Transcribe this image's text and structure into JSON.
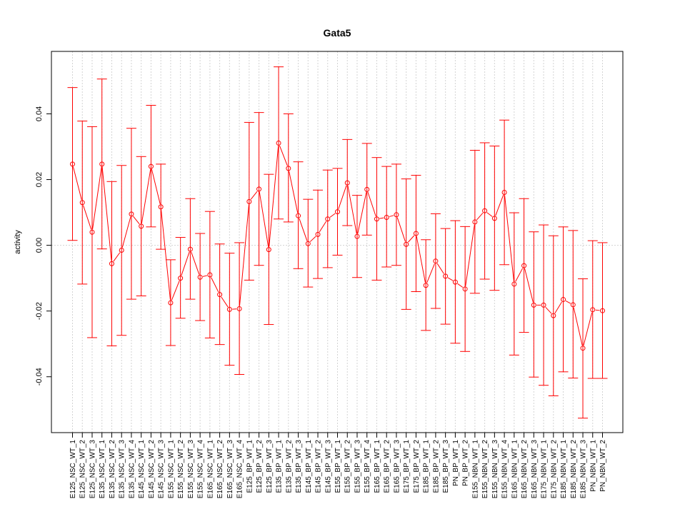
{
  "chart_data": {
    "type": "line",
    "title": "Gata5",
    "xlabel": "",
    "ylabel": "activity",
    "ylim": [
      -0.057,
      0.059
    ],
    "yticks": [
      -0.04,
      -0.02,
      0.0,
      0.02,
      0.04
    ],
    "ytick_labels": [
      "-0.04",
      "-0.02",
      "0.00",
      "0.02",
      "0.04"
    ],
    "grid": true,
    "series_color": "#ff0000",
    "grid_color": "#d3d3d3",
    "categories": [
      "E125_NSC_WT_1",
      "E125_NSC_WT_2",
      "E125_NSC_WT_3",
      "E135_NSC_WT_1",
      "E135_NSC_WT_2",
      "E135_NSC_WT_3",
      "E135_NSC_WT_4",
      "E145_NSC_WT_1",
      "E145_NSC_WT_2",
      "E145_NSC_WT_3",
      "E155_NSC_WT_1",
      "E155_NSC_WT_2",
      "E155_NSC_WT_3",
      "E155_NSC_WT_4",
      "E165_NSC_WT_1",
      "E165_NSC_WT_2",
      "E165_NSC_WT_3",
      "E165_NSC_WT_4",
      "E125_BP_WT_1",
      "E125_BP_WT_2",
      "E125_BP_WT_3",
      "E135_BP_WT_1",
      "E135_BP_WT_2",
      "E135_BP_WT_3",
      "E145_BP_WT_1",
      "E145_BP_WT_2",
      "E145_BP_WT_3",
      "E155_BP_WT_1",
      "E155_BP_WT_2",
      "E155_BP_WT_3",
      "E155_BP_WT_4",
      "E165_BP_WT_1",
      "E165_BP_WT_2",
      "E165_BP_WT_3",
      "E175_BP_WT_1",
      "E175_BP_WT_2",
      "E185_BP_WT_1",
      "E185_BP_WT_2",
      "E185_BP_WT_3",
      "PN_BP_WT_1",
      "PN_BP_WT_2",
      "E155_NBN_WT_1",
      "E155_NBN_WT_2",
      "E155_NBN_WT_3",
      "E155_NBN_WT_4",
      "E165_NBN_WT_1",
      "E165_NBN_WT_2",
      "E165_NBN_WT_3",
      "E175_NBN_WT_1",
      "E175_NBN_WT_2",
      "E185_NBN_WT_1",
      "E185_NBN_WT_2",
      "E185_NBN_WT_3",
      "PN_NBN_WT_1",
      "PN_NBN_WT_2"
    ],
    "values": [
      0.0247,
      0.013,
      0.004,
      0.0247,
      -0.0056,
      -0.0015,
      0.0095,
      0.0058,
      0.024,
      0.0117,
      -0.0175,
      -0.01,
      -0.0012,
      -0.0097,
      -0.009,
      -0.015,
      -0.0195,
      -0.0193,
      0.0133,
      0.0171,
      -0.0013,
      0.0311,
      0.0234,
      0.009,
      0.0005,
      0.0033,
      0.008,
      0.0102,
      0.019,
      0.0027,
      0.017,
      0.008,
      0.0085,
      0.0093,
      0.0003,
      0.0036,
      -0.0122,
      -0.0048,
      -0.0094,
      -0.0112,
      -0.0133,
      0.0071,
      0.0105,
      0.0082,
      0.0161,
      -0.0118,
      -0.0062,
      -0.0182,
      -0.0182,
      -0.0214,
      -0.0165,
      -0.0181,
      -0.0313,
      -0.0196,
      -0.0199
    ],
    "upper": [
      0.048,
      0.0378,
      0.0361,
      0.0506,
      0.0194,
      0.0243,
      0.0356,
      0.027,
      0.0426,
      0.0247,
      -0.0044,
      0.0024,
      0.0142,
      0.0036,
      0.0103,
      0.0004,
      -0.0024,
      0.0008,
      0.0374,
      0.0404,
      0.0216,
      0.0543,
      0.04,
      0.0254,
      0.014,
      0.0168,
      0.0229,
      0.0234,
      0.0322,
      0.0152,
      0.031,
      0.0267,
      0.024,
      0.0247,
      0.0202,
      0.0213,
      0.0017,
      0.0096,
      0.0051,
      0.0075,
      0.0057,
      0.0289,
      0.0312,
      0.0302,
      0.0381,
      0.0099,
      0.0142,
      0.0041,
      0.0062,
      0.0029,
      0.0056,
      0.0045,
      -0.0102,
      0.0014,
      0.0008
    ],
    "lower": [
      0.0015,
      -0.0118,
      -0.0281,
      -0.0011,
      -0.0306,
      -0.0274,
      -0.0164,
      -0.0154,
      0.0056,
      -0.0012,
      -0.0305,
      -0.0222,
      -0.0164,
      -0.0229,
      -0.0282,
      -0.0302,
      -0.0365,
      -0.0393,
      -0.0106,
      -0.0061,
      -0.0241,
      0.008,
      0.0071,
      -0.0071,
      -0.0127,
      -0.0101,
      -0.0068,
      -0.003,
      0.006,
      -0.0098,
      0.0031,
      -0.0106,
      -0.0066,
      -0.0061,
      -0.0195,
      -0.0141,
      -0.0259,
      -0.0192,
      -0.024,
      -0.0298,
      -0.0323,
      -0.0146,
      -0.0103,
      -0.0137,
      -0.0059,
      -0.0334,
      -0.0265,
      -0.0401,
      -0.0426,
      -0.0458,
      -0.0385,
      -0.0404,
      -0.0526,
      -0.0405,
      -0.0405
    ]
  }
}
